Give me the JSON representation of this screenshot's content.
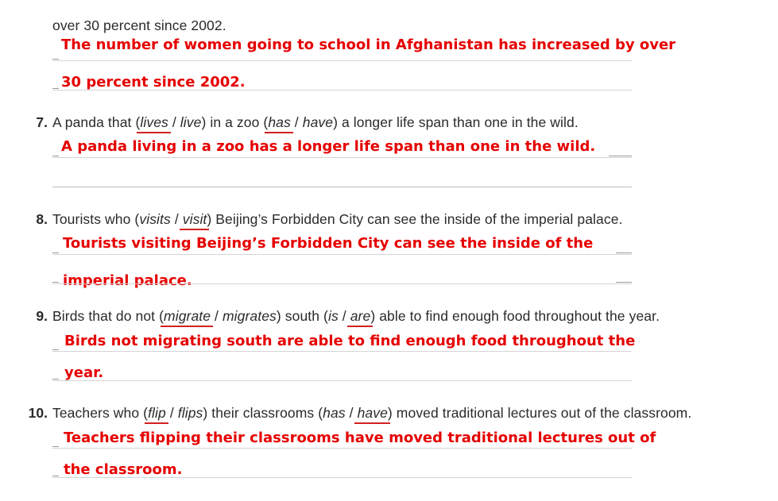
{
  "intro": {
    "prev_text": "over 30 percent since 2002.",
    "answer_line1": "The number of women going to school in Afghanistan has increased by over",
    "answer_line2": "30 percent since 2002."
  },
  "items": [
    {
      "number": "7.",
      "q_pre": "A panda that (",
      "opt1": "lives",
      "sep1": " / ",
      "opt2": "live",
      "q_mid": ") in a zoo (",
      "opt3": "has",
      "sep2": " / ",
      "opt4": "have",
      "q_post": ") a longer life span than one in the wild.",
      "answer_line1": "A panda living in a zoo has a longer life span than one in the wild.",
      "answer_line2": ""
    },
    {
      "number": "8.",
      "q_pre": "Tourists who (",
      "opt1": "visits",
      "sep1": " / ",
      "opt2": "visit",
      "q_post": ") Beijing’s Forbidden City can see the inside of the imperial palace.",
      "answer_line1": "Tourists visiting Beijing’s Forbidden City can see the inside of the",
      "answer_line2": "imperial palace."
    },
    {
      "number": "9.",
      "q_pre": "Birds that do not (",
      "opt1": "migrate",
      "sep1": " / ",
      "opt2": "migrates",
      "q_mid": ") south (",
      "opt3": "is",
      "sep2": " / ",
      "opt4": "are",
      "q_post": ") able to find enough food throughout the year.",
      "answer_line1": "Birds not migrating south are able to find enough food throughout the",
      "answer_line2": "year."
    },
    {
      "number": "10.",
      "q_pre": "Teachers who (",
      "opt1": "flip",
      "sep1": " / ",
      "opt2": "flips",
      "q_mid": ") their classrooms (",
      "opt3": "has",
      "sep2": " / ",
      "opt4": "have",
      "q_post": ") moved traditional lectures out of the classroom.",
      "answer_line1": "Teachers flipping their classrooms have moved traditional lectures out of",
      "answer_line2": "the classroom."
    }
  ]
}
